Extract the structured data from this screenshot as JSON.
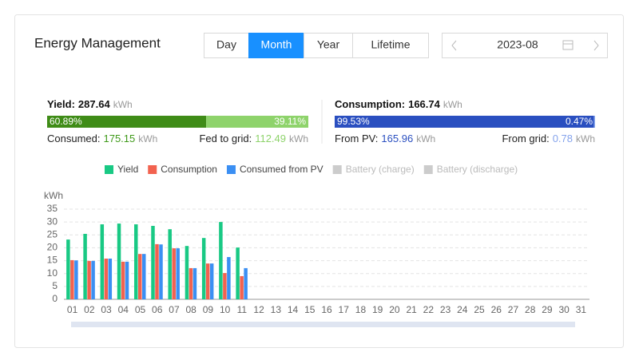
{
  "header": {
    "title": "Energy Management",
    "tabs": [
      "Day",
      "Month",
      "Year",
      "Lifetime"
    ],
    "active_tab": 1,
    "date": "2023-08"
  },
  "yield": {
    "label": "Yield:",
    "total": 287.64,
    "unit": "kWh",
    "split": {
      "values": [
        60.89,
        39.11
      ],
      "value_labels": [
        "60.89%",
        "39.11%"
      ],
      "colors": [
        "#3f8c17",
        "#8ed36b"
      ]
    },
    "left_label": "Consumed:",
    "left_value": 175.15,
    "right_label": "Fed to grid:",
    "right_value": 112.49
  },
  "consumption": {
    "label": "Consumption:",
    "total": 166.74,
    "unit": "kWh",
    "split": {
      "values": [
        99.53,
        0.47
      ],
      "value_labels": [
        "99.53%",
        "0.47%"
      ],
      "colors": [
        "#2a4fc0",
        "#86a4ec"
      ]
    },
    "left_label": "From PV:",
    "left_value": 165.96,
    "right_label": "From grid:",
    "right_value": 0.78
  },
  "chart_data": {
    "type": "bar",
    "y_label": "kWh",
    "categories": [
      "01",
      "02",
      "03",
      "04",
      "05",
      "06",
      "07",
      "08",
      "09",
      "10",
      "11",
      "12",
      "13",
      "14",
      "15",
      "16",
      "17",
      "18",
      "19",
      "20",
      "21",
      "22",
      "23",
      "24",
      "25",
      "26",
      "27",
      "28",
      "29",
      "30",
      "31"
    ],
    "series": [
      {
        "name": "Yield",
        "color": "#19c984",
        "values": [
          23.2,
          25.4,
          29.1,
          29.4,
          29.1,
          28.5,
          27.2,
          20.7,
          23.8,
          30.0,
          20.1,
          null,
          null,
          null,
          null,
          null,
          null,
          null,
          null,
          null,
          null,
          null,
          null,
          null,
          null,
          null,
          null,
          null,
          null,
          null,
          null
        ]
      },
      {
        "name": "Consumption",
        "color": "#f2624f",
        "values": [
          15.2,
          14.9,
          15.8,
          14.6,
          17.6,
          21.4,
          19.8,
          12.1,
          13.9,
          10.2,
          9.0,
          null,
          null,
          null,
          null,
          null,
          null,
          null,
          null,
          null,
          null,
          null,
          null,
          null,
          null,
          null,
          null,
          null,
          null,
          null,
          null
        ]
      },
      {
        "name": "Consumed from PV",
        "color": "#3b8ff3",
        "values": [
          15.1,
          14.9,
          15.8,
          14.6,
          17.6,
          21.3,
          19.8,
          12.1,
          13.9,
          16.4,
          12.1,
          null,
          null,
          null,
          null,
          null,
          null,
          null,
          null,
          null,
          null,
          null,
          null,
          null,
          null,
          null,
          null,
          null,
          null,
          null,
          null
        ]
      }
    ],
    "disabled_legend": [
      "Battery (charge)",
      "Battery (discharge)"
    ],
    "ylim": [
      0,
      35
    ],
    "yticks": [
      0,
      5,
      10,
      15,
      20,
      25,
      30,
      35
    ],
    "grid": true
  }
}
